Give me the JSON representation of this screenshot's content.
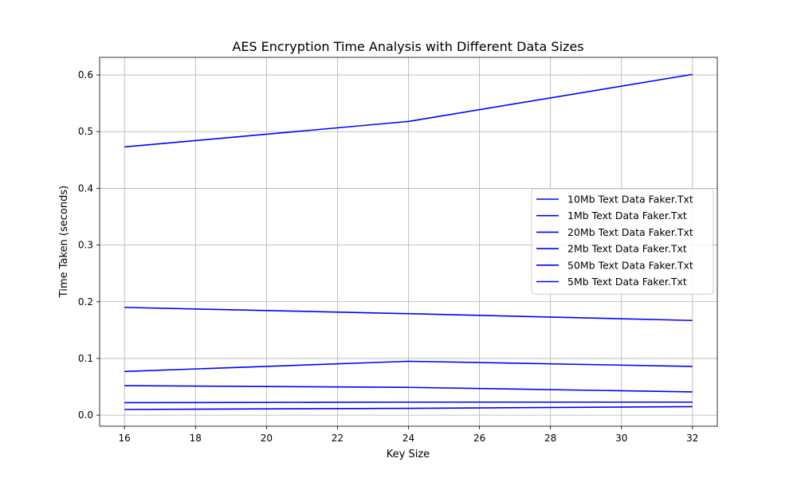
{
  "chart_data": {
    "type": "line",
    "title": "AES Encryption Time Analysis with Different Data Sizes",
    "xlabel": "Key Size",
    "ylabel": "Time Taken (seconds)",
    "xlim": [
      15.3,
      32.7
    ],
    "ylim": [
      -0.0195,
      0.631
    ],
    "xticks": [
      16,
      18,
      20,
      22,
      24,
      26,
      28,
      30,
      32
    ],
    "yticks": [
      0.0,
      0.1,
      0.2,
      0.3,
      0.4,
      0.5,
      0.6
    ],
    "ytick_labels": [
      "0.0",
      "0.1",
      "0.2",
      "0.3",
      "0.4",
      "0.5",
      "0.6"
    ],
    "grid": true,
    "legend_position": "center-right",
    "line_color": "#0000ff",
    "x": [
      16,
      24,
      32
    ],
    "series": [
      {
        "name": "10Mb Text Data Faker.Txt",
        "values": [
          0.077,
          0.095,
          0.086
        ]
      },
      {
        "name": "1Mb Text Data Faker.Txt",
        "values": [
          0.01,
          0.012,
          0.015
        ]
      },
      {
        "name": "20Mb Text Data Faker.Txt",
        "values": [
          0.19,
          0.179,
          0.167
        ]
      },
      {
        "name": "2Mb Text Data Faker.Txt",
        "values": [
          0.022,
          0.023,
          0.023
        ]
      },
      {
        "name": "50Mb Text Data Faker.Txt",
        "values": [
          0.473,
          0.518,
          0.601
        ]
      },
      {
        "name": "5Mb Text Data Faker.Txt",
        "values": [
          0.052,
          0.049,
          0.041
        ]
      }
    ]
  }
}
